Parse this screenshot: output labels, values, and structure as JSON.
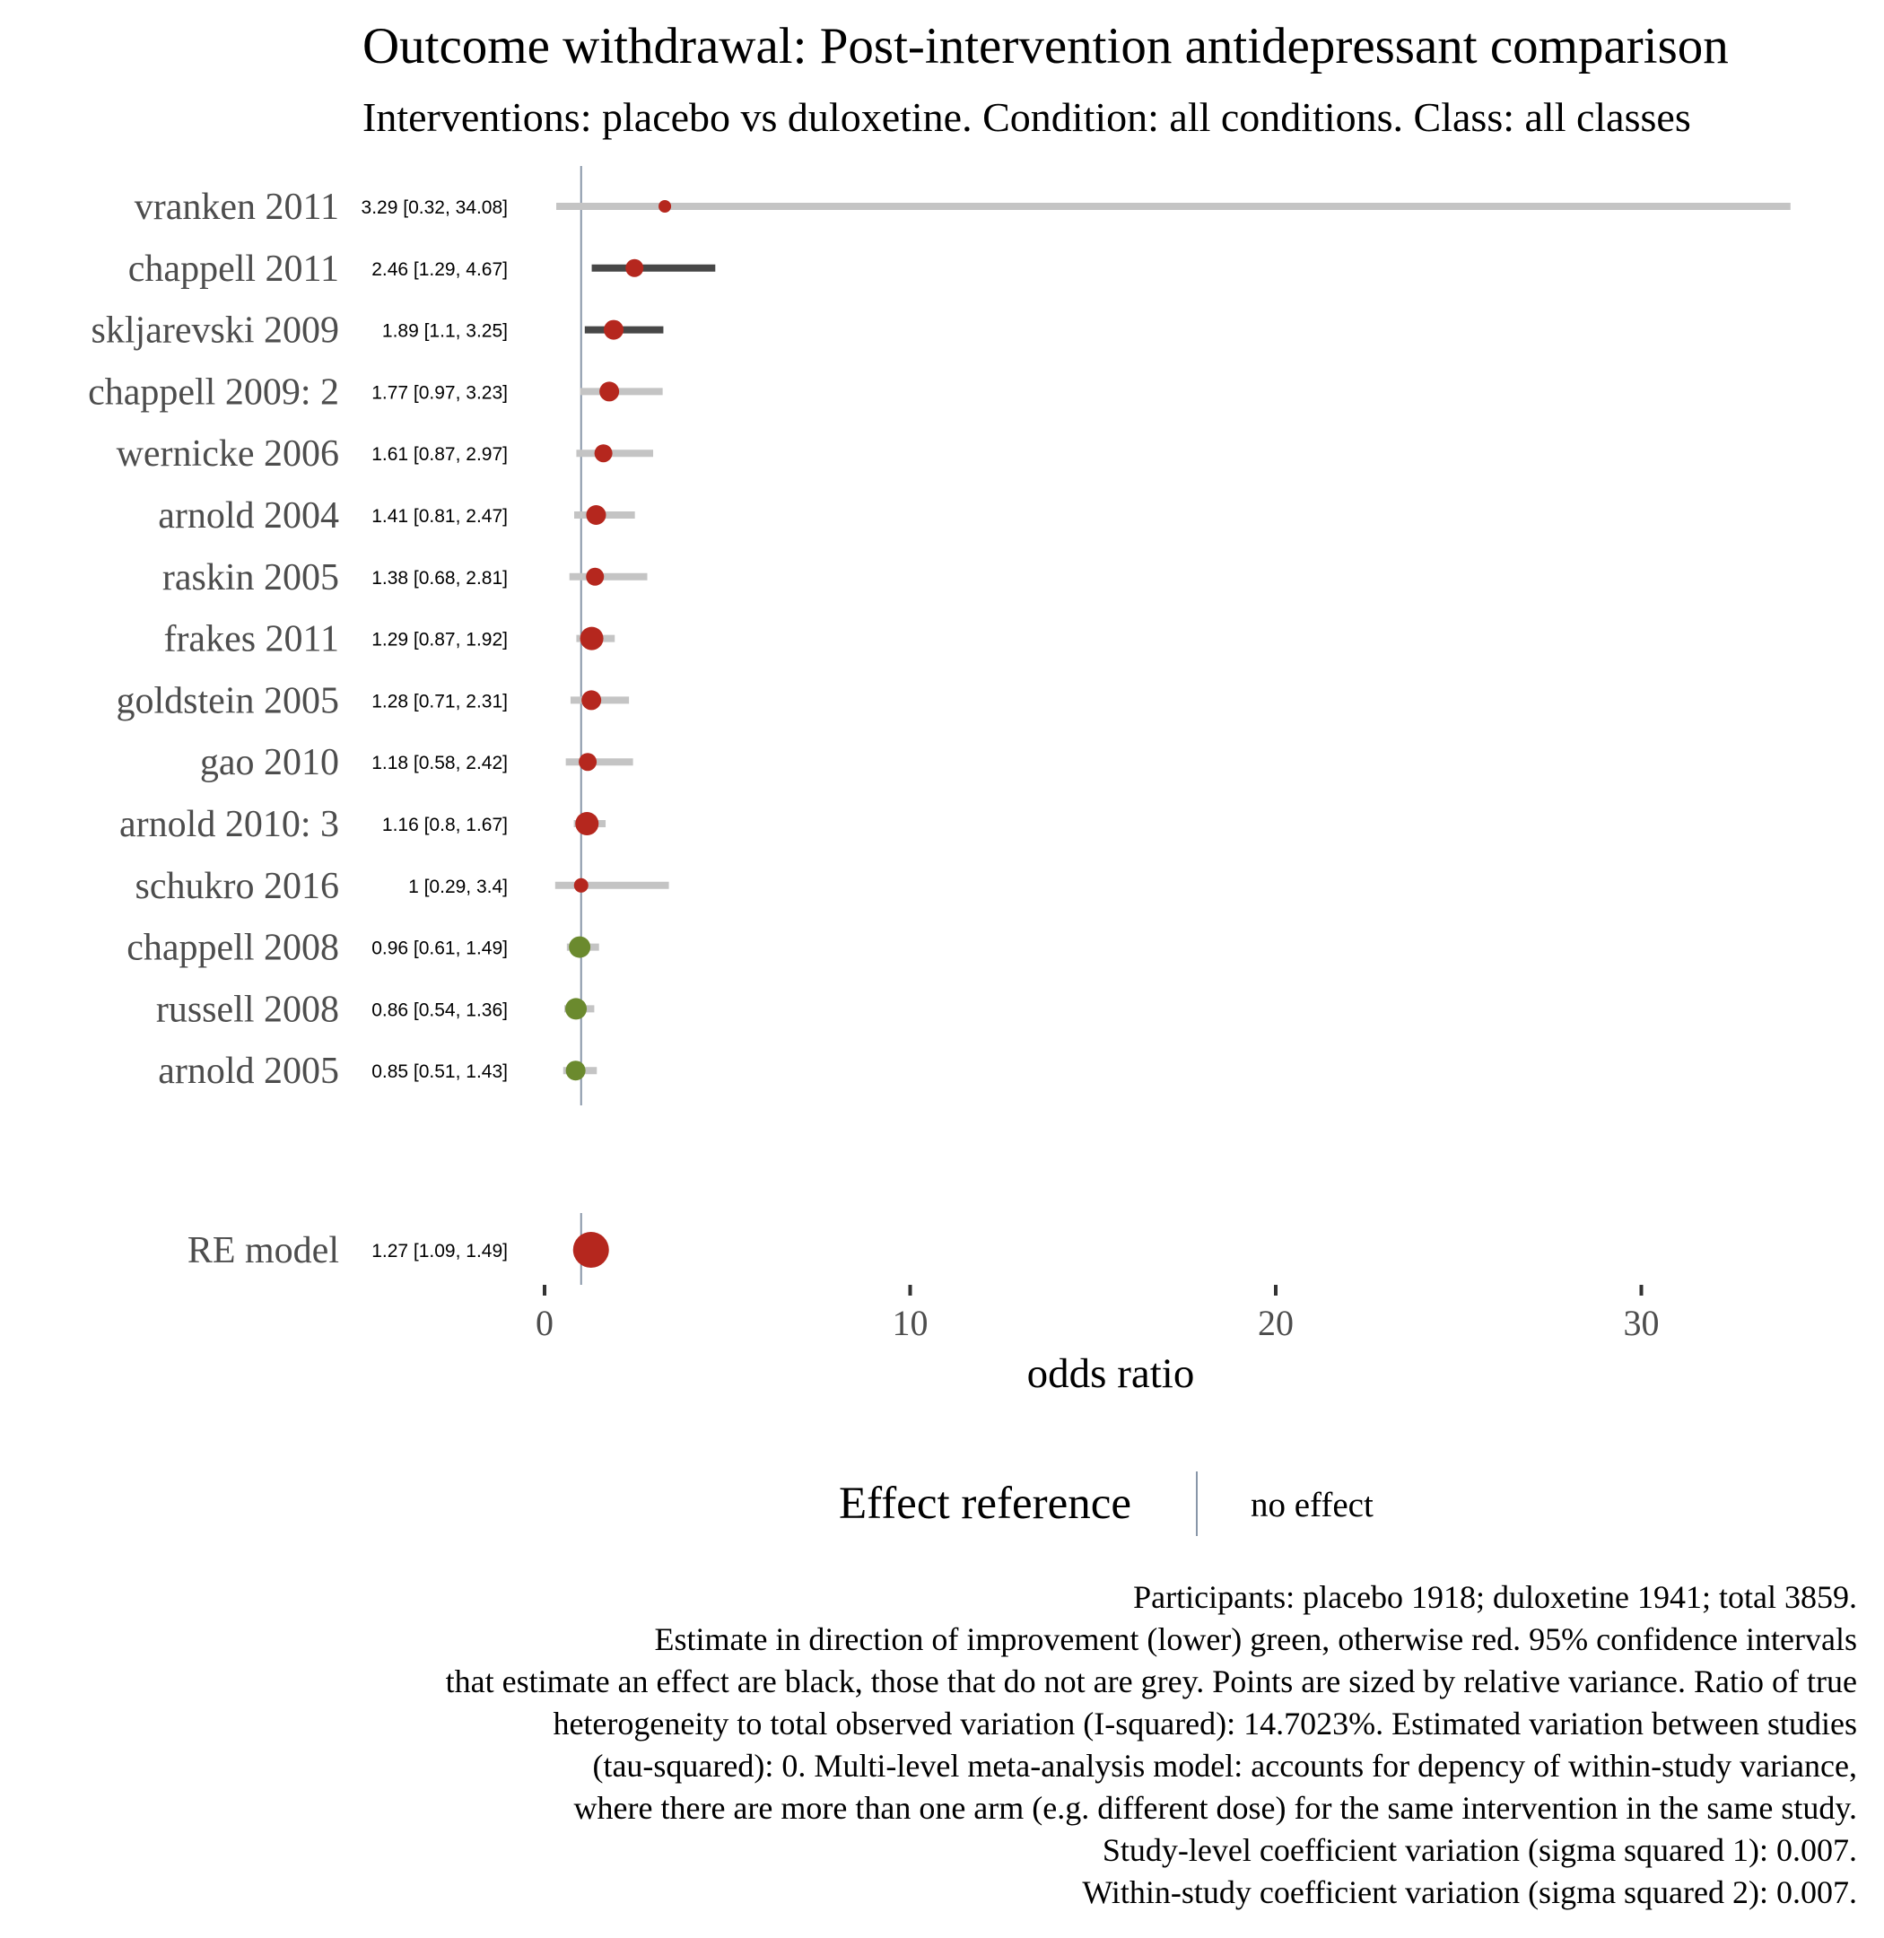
{
  "chart_data": {
    "type": "forest",
    "title": "Outcome withdrawal: Post-intervention antidepressant comparison",
    "subtitle": "Interventions: placebo vs duloxetine. Condition: all conditions. Class: all classes",
    "xlabel": "odds ratio",
    "xlim": [
      -0.5,
      34.5
    ],
    "xticks": [
      0,
      10,
      20,
      30
    ],
    "reference_line": 1,
    "colors": {
      "red": "#b5271e",
      "green": "#6b8a2e",
      "ci_grey": "#c4c4c4",
      "ci_black": "#474747",
      "reference": "#8896a8"
    },
    "studies": [
      {
        "label": "vranken 2011",
        "est_text": "3.29 [0.32, 34.08]",
        "est": 3.29,
        "lo": 0.32,
        "hi": 34.08,
        "color": "red",
        "ci": "grey",
        "size": 7
      },
      {
        "label": "chappell 2011",
        "est_text": "2.46 [1.29, 4.67]",
        "est": 2.46,
        "lo": 1.29,
        "hi": 4.67,
        "color": "red",
        "ci": "black",
        "size": 10
      },
      {
        "label": "skljarevski 2009",
        "est_text": "1.89 [1.1, 3.25]",
        "est": 1.89,
        "lo": 1.1,
        "hi": 3.25,
        "color": "red",
        "ci": "black",
        "size": 11
      },
      {
        "label": "chappell 2009: 2",
        "est_text": "1.77 [0.97, 3.23]",
        "est": 1.77,
        "lo": 0.97,
        "hi": 3.23,
        "color": "red",
        "ci": "grey",
        "size": 11
      },
      {
        "label": "wernicke 2006",
        "est_text": "1.61 [0.87, 2.97]",
        "est": 1.61,
        "lo": 0.87,
        "hi": 2.97,
        "color": "red",
        "ci": "grey",
        "size": 10
      },
      {
        "label": "arnold 2004",
        "est_text": "1.41 [0.81, 2.47]",
        "est": 1.41,
        "lo": 0.81,
        "hi": 2.47,
        "color": "red",
        "ci": "grey",
        "size": 11
      },
      {
        "label": "raskin 2005",
        "est_text": "1.38 [0.68, 2.81]",
        "est": 1.38,
        "lo": 0.68,
        "hi": 2.81,
        "color": "red",
        "ci": "grey",
        "size": 10
      },
      {
        "label": "frakes 2011",
        "est_text": "1.29 [0.87, 1.92]",
        "est": 1.29,
        "lo": 0.87,
        "hi": 1.92,
        "color": "red",
        "ci": "grey",
        "size": 13
      },
      {
        "label": "goldstein 2005",
        "est_text": "1.28 [0.71, 2.31]",
        "est": 1.28,
        "lo": 0.71,
        "hi": 2.31,
        "color": "red",
        "ci": "grey",
        "size": 11
      },
      {
        "label": "gao 2010",
        "est_text": "1.18 [0.58, 2.42]",
        "est": 1.18,
        "lo": 0.58,
        "hi": 2.42,
        "color": "red",
        "ci": "grey",
        "size": 10
      },
      {
        "label": "arnold 2010: 3",
        "est_text": "1.16 [0.8, 1.67]",
        "est": 1.16,
        "lo": 0.8,
        "hi": 1.67,
        "color": "red",
        "ci": "grey",
        "size": 13
      },
      {
        "label": "schukro 2016",
        "est_text": "1 [0.29, 3.4]",
        "est": 1.0,
        "lo": 0.29,
        "hi": 3.4,
        "color": "red",
        "ci": "grey",
        "size": 8
      },
      {
        "label": "chappell 2008",
        "est_text": "0.96 [0.61, 1.49]",
        "est": 0.96,
        "lo": 0.61,
        "hi": 1.49,
        "color": "green",
        "ci": "grey",
        "size": 12
      },
      {
        "label": "russell 2008",
        "est_text": "0.86 [0.54, 1.36]",
        "est": 0.86,
        "lo": 0.54,
        "hi": 1.36,
        "color": "green",
        "ci": "grey",
        "size": 12
      },
      {
        "label": "arnold 2005",
        "est_text": "0.85 [0.51, 1.43]",
        "est": 0.85,
        "lo": 0.51,
        "hi": 1.43,
        "color": "green",
        "ci": "grey",
        "size": 11
      }
    ],
    "summary": {
      "label": "RE model",
      "est_text": "1.27 [1.09, 1.49]",
      "est": 1.27,
      "lo": 1.09,
      "hi": 1.49,
      "color": "red",
      "size": 20
    },
    "legend": {
      "title": "Effect reference",
      "item": "no effect",
      "placement": "bottom"
    },
    "caption": [
      "Participants: placebo 1918; duloxetine 1941; total 3859.",
      "Estimate in direction of improvement (lower) green, otherwise red. 95% confidence intervals",
      "that estimate an effect are black, those that do not are grey. Points are sized by relative variance. Ratio of true",
      "heterogeneity to total observed variation (I-squared): 14.7023%. Estimated variation between studies",
      "(tau-squared): 0. Multi-level meta-analysis model: accounts for depency of within-study variance,",
      "where there are more than one arm (e.g. different dose) for the same intervention in the same study.",
      "Study-level coefficient variation (sigma squared 1): 0.007.",
      "Within-study coefficient variation (sigma squared 2): 0.007."
    ]
  }
}
